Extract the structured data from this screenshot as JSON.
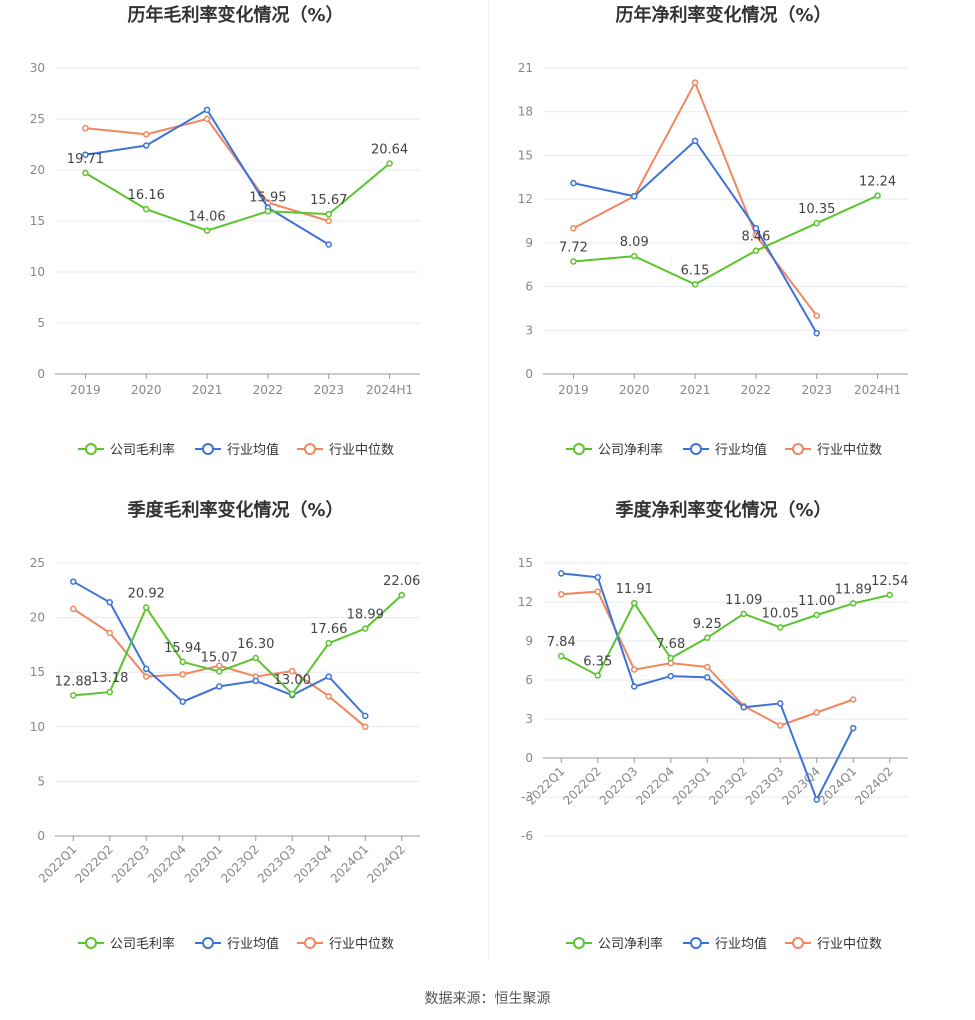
{
  "colors": {
    "company": "#5ac42c",
    "industry_avg": "#3d72d9",
    "industry_median": "#f0875e",
    "grid": "#e6e9f2",
    "axis": "#999999"
  },
  "source_text": "数据来源：恒生聚源",
  "chart_data": [
    {
      "type": "line",
      "title": "历年毛利率变化情况（%）",
      "categories": [
        "2019",
        "2020",
        "2021",
        "2022",
        "2023",
        "2024H1"
      ],
      "ylim": [
        0,
        30
      ],
      "yticks": [
        0,
        5,
        10,
        15,
        20,
        25,
        30
      ],
      "grid": true,
      "legend_position": "bottom",
      "series": [
        {
          "name": "公司毛利率",
          "values": [
            19.71,
            16.16,
            14.06,
            15.95,
            15.67,
            20.64
          ],
          "labels": [
            "19.71",
            "16.16",
            "14.06",
            "15.95",
            "15.67",
            "20.64"
          ]
        },
        {
          "name": "行业均值",
          "values": [
            21.5,
            22.4,
            25.9,
            16.3,
            12.7,
            null
          ]
        },
        {
          "name": "行业中位数",
          "values": [
            24.1,
            23.5,
            25.0,
            16.8,
            15.0,
            null
          ]
        }
      ]
    },
    {
      "type": "line",
      "title": "历年净利率变化情况（%）",
      "categories": [
        "2019",
        "2020",
        "2021",
        "2022",
        "2023",
        "2024H1"
      ],
      "ylim": [
        0,
        21
      ],
      "yticks": [
        0,
        3,
        6,
        9,
        12,
        15,
        18,
        21
      ],
      "grid": true,
      "legend_position": "bottom",
      "series": [
        {
          "name": "公司净利率",
          "values": [
            7.72,
            8.09,
            6.15,
            8.46,
            10.35,
            12.24
          ],
          "labels": [
            "7.72",
            "8.09",
            "6.15",
            "8.46",
            "10.35",
            "12.24"
          ]
        },
        {
          "name": "行业均值",
          "values": [
            13.1,
            12.2,
            16.0,
            10.0,
            2.8,
            null
          ]
        },
        {
          "name": "行业中位数",
          "values": [
            10.0,
            12.2,
            20.0,
            9.5,
            4.0,
            null
          ]
        }
      ]
    },
    {
      "type": "line",
      "title": "季度毛利率变化情况（%）",
      "categories": [
        "2022Q1",
        "2022Q2",
        "2022Q3",
        "2022Q4",
        "2023Q1",
        "2023Q2",
        "2023Q3",
        "2023Q4",
        "2024Q1",
        "2024Q2"
      ],
      "ylim": [
        0,
        25
      ],
      "yticks": [
        0,
        5,
        10,
        15,
        20,
        25
      ],
      "grid": true,
      "legend_position": "bottom",
      "series": [
        {
          "name": "公司毛利率",
          "values": [
            12.88,
            13.18,
            20.92,
            15.94,
            15.07,
            16.3,
            13.0,
            17.66,
            18.99,
            22.06
          ],
          "labels": [
            "12.88",
            "13.18",
            "20.92",
            "15.94",
            "15.07",
            "16.30",
            "13.00",
            "17.66",
            "18.99",
            "22.06"
          ]
        },
        {
          "name": "行业均值",
          "values": [
            23.3,
            21.4,
            15.3,
            12.3,
            13.7,
            14.2,
            12.9,
            14.6,
            11.0,
            null
          ]
        },
        {
          "name": "行业中位数",
          "values": [
            20.8,
            18.6,
            14.6,
            14.8,
            15.6,
            14.6,
            15.1,
            12.8,
            10.0,
            null
          ]
        }
      ]
    },
    {
      "type": "line",
      "title": "季度净利率变化情况（%）",
      "categories": [
        "2022Q1",
        "2022Q2",
        "2022Q3",
        "2022Q4",
        "2023Q1",
        "2023Q2",
        "2023Q3",
        "2023Q4",
        "2024Q1",
        "2024Q2"
      ],
      "ylim": [
        -6,
        15
      ],
      "yticks": [
        -6,
        -3,
        0,
        3,
        6,
        9,
        12,
        15
      ],
      "grid": true,
      "legend_position": "bottom",
      "series": [
        {
          "name": "公司净利率",
          "values": [
            7.84,
            6.35,
            11.91,
            7.68,
            9.25,
            11.09,
            10.05,
            11.0,
            11.89,
            12.54
          ],
          "labels": [
            "7.84",
            "6.35",
            "11.91",
            "7.68",
            "9.25",
            "11.09",
            "10.05",
            "11.00",
            "11.89",
            "12.54"
          ]
        },
        {
          "name": "行业均值",
          "values": [
            14.2,
            13.9,
            5.5,
            6.3,
            6.2,
            3.9,
            4.2,
            -3.2,
            2.3,
            null
          ]
        },
        {
          "name": "行业中位数",
          "values": [
            12.6,
            12.8,
            6.8,
            7.3,
            7.0,
            4.0,
            2.5,
            3.5,
            4.5,
            null
          ]
        }
      ]
    }
  ]
}
